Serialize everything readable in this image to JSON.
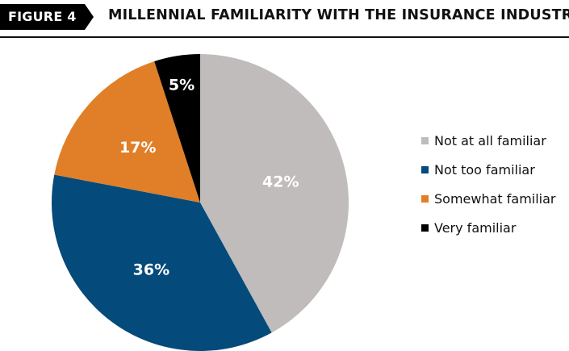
{
  "header": {
    "figure_tag": "FIGURE 4",
    "title": "MILLENNIAL FAMILIARITY WITH THE INSURANCE INDUSTRY"
  },
  "chart_data": {
    "type": "pie",
    "title": "MILLENNIAL FAMILIARITY WITH THE INSURANCE INDUSTRY",
    "categories": [
      "Not at all familiar",
      "Not too familiar",
      "Somewhat familiar",
      "Very familiar"
    ],
    "values": [
      42,
      36,
      17,
      5
    ],
    "value_labels": [
      "42%",
      "36%",
      "17%",
      "5%"
    ],
    "colors": [
      "#c0bcbb",
      "#044a7b",
      "#e07f27",
      "#000000"
    ],
    "start": "12 o'clock",
    "direction": "clockwise",
    "legend_position": "right"
  }
}
